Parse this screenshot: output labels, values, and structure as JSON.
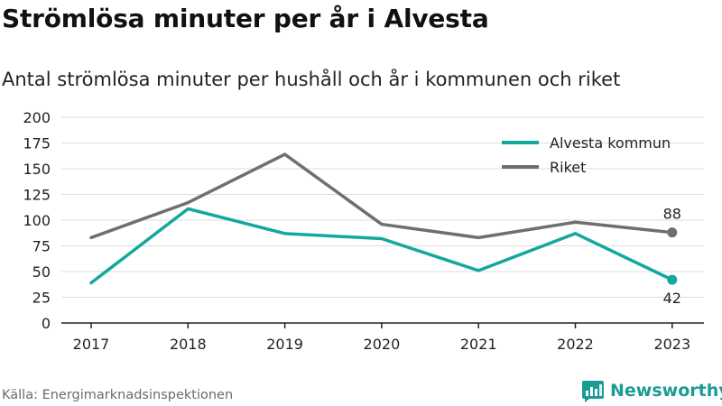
{
  "header": {
    "title": "Strömlösa minuter per år i Alvesta",
    "subtitle": "Antal strömlösa minuter per hushåll och år i kommunen och riket"
  },
  "footer": {
    "source": "Källa: Energimarknadsinspektionen",
    "brand": "Newsworthy"
  },
  "colors": {
    "alvesta": "#13a89e",
    "riket": "#6e6e73",
    "grid": "#dddddd",
    "brand": "#1a9c95"
  },
  "chart_data": {
    "type": "line",
    "title": "Strömlösa minuter per år i Alvesta",
    "subtitle": "Antal strömlösa minuter per hushåll och år i kommunen och riket",
    "categories": [
      "2017",
      "2018",
      "2019",
      "2020",
      "2021",
      "2022",
      "2023"
    ],
    "yticks": [
      "0",
      "25",
      "50",
      "75",
      "100",
      "125",
      "150",
      "175",
      "200"
    ],
    "ylim": [
      0,
      200
    ],
    "grid": true,
    "legend_position": "top-right",
    "series": [
      {
        "name": "Alvesta kommun",
        "values": [
          39,
          111,
          87,
          82,
          51,
          87,
          42
        ],
        "end_label": "42"
      },
      {
        "name": "Riket",
        "values": [
          83,
          117,
          164,
          96,
          83,
          98,
          88
        ],
        "end_label": "88"
      }
    ]
  }
}
